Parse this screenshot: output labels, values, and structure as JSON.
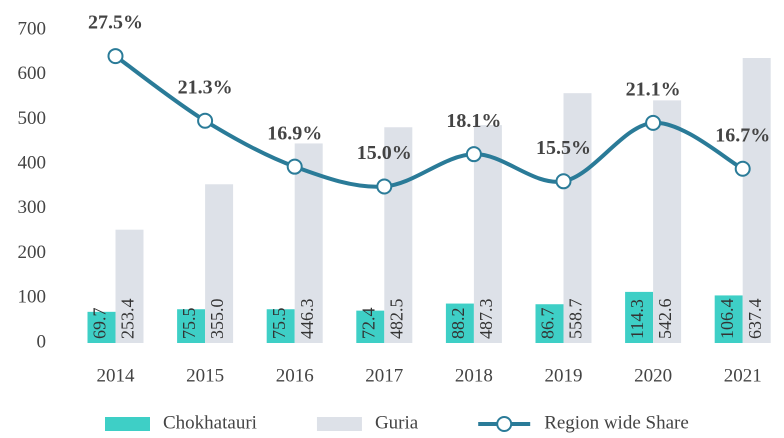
{
  "chart_data": {
    "type": "bar_line",
    "categories": [
      "2014",
      "2015",
      "2016",
      "2017",
      "2018",
      "2019",
      "2020",
      "2021"
    ],
    "series": [
      {
        "name": "Chokhatauri",
        "type": "bar",
        "color": "#3ecfc6",
        "values": [
          69.7,
          75.5,
          75.5,
          72.4,
          88.2,
          86.7,
          114.3,
          106.4
        ],
        "value_labels": [
          "69.7",
          "75.5",
          "75.5",
          "72.4",
          "88.2",
          "86.7",
          "114.3",
          "106.4"
        ]
      },
      {
        "name": "Guria",
        "type": "bar",
        "color": "#dde1e8",
        "values": [
          253.4,
          355.0,
          446.3,
          482.5,
          487.3,
          558.7,
          542.6,
          637.4
        ],
        "value_labels": [
          "253.4",
          "355.0",
          "446.3",
          "482.5",
          "487.3",
          "558.7",
          "542.6",
          "637.4"
        ]
      },
      {
        "name": "Region wide Share",
        "type": "line",
        "axis": "y2",
        "color": "#2a7b98",
        "values": [
          27.5,
          21.3,
          16.9,
          15.0,
          18.1,
          15.5,
          21.1,
          16.7
        ],
        "value_labels": [
          "27.5%",
          "21.3%",
          "16.9%",
          "15.0%",
          "18.1%",
          "15.5%",
          "21.1%",
          "16.7%"
        ]
      }
    ],
    "ylim": [
      0,
      700
    ],
    "yticks": [
      0,
      100,
      200,
      300,
      400,
      500,
      600,
      700
    ],
    "y2lim": [
      0,
      30
    ],
    "grid": false,
    "legend": "bottom"
  }
}
